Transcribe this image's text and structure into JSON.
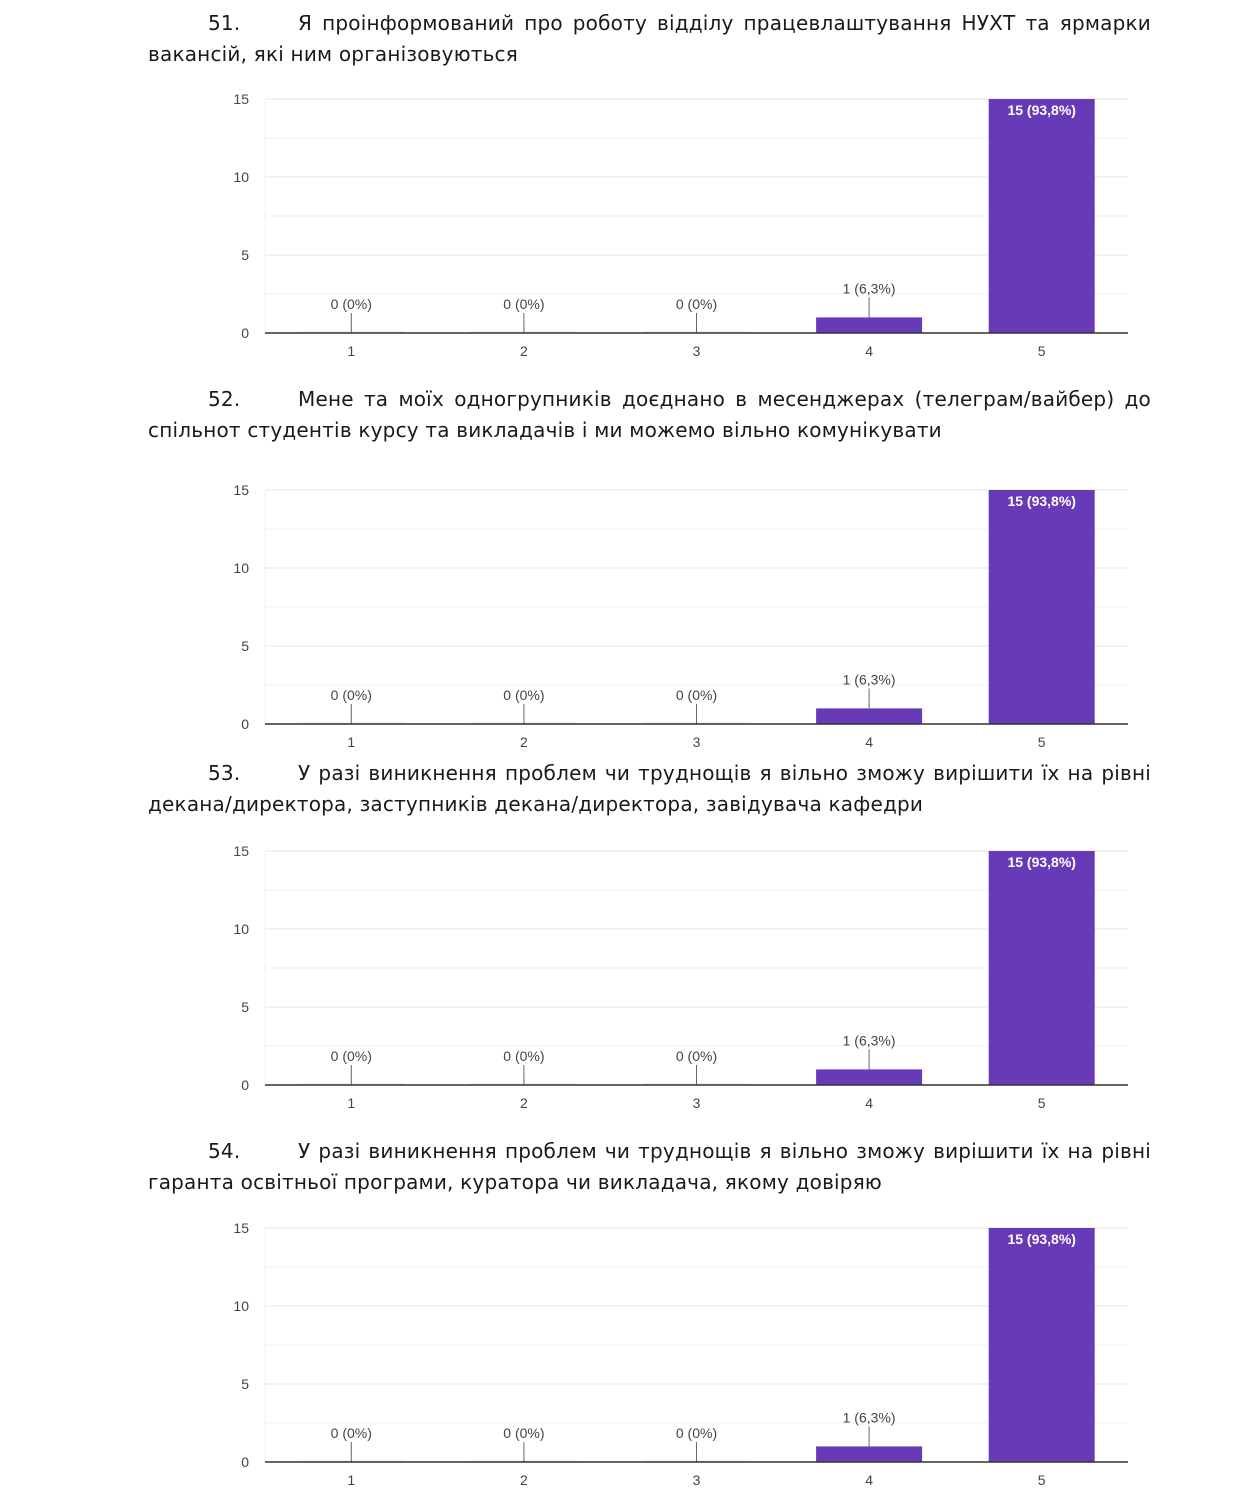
{
  "questions": [
    {
      "number": "51.",
      "text": "Я проінформований про роботу відділу працевлаштування НУХТ та ярмарки вакансій, які ним організовуються"
    },
    {
      "number": "52.",
      "text": "Мене та моїх одногрупників доєднано в месенджерах (телеграм/вайбер) до спільнот студентів курсу та викладачів і ми можемо вільно комунікувати"
    },
    {
      "number": "53.",
      "text": "У разі виникнення проблем чи труднощів я вільно зможу вирішити їх на рівні декана/директора, заступників декана/директора, завідувача кафедри"
    },
    {
      "number": "54.",
      "text": "У разі виникнення проблем чи труднощів я вільно зможу вирішити їх на рівні гаранта освітньої програми, куратора чи викладача, якому довіряю"
    }
  ],
  "colors": {
    "bar": "#673ab7",
    "axis": "#333333",
    "grid": "#eeeeee",
    "text": "#444444"
  },
  "chart_data": [
    {
      "type": "bar",
      "title": "51.",
      "categories": [
        "1",
        "2",
        "3",
        "4",
        "5"
      ],
      "values": [
        0,
        0,
        0,
        1,
        15
      ],
      "labels": [
        "0 (0%)",
        "0 (0%)",
        "0 (0%)",
        "1 (6,3%)",
        "15 (93,8%)"
      ],
      "yticks": [
        "0",
        "5",
        "10",
        "15"
      ],
      "ylim": [
        0,
        15
      ],
      "grid": true,
      "xlabel": "",
      "ylabel": ""
    },
    {
      "type": "bar",
      "title": "52.",
      "categories": [
        "1",
        "2",
        "3",
        "4",
        "5"
      ],
      "values": [
        0,
        0,
        0,
        1,
        15
      ],
      "labels": [
        "0 (0%)",
        "0 (0%)",
        "0 (0%)",
        "1 (6,3%)",
        "15 (93,8%)"
      ],
      "yticks": [
        "0",
        "5",
        "10",
        "15"
      ],
      "ylim": [
        0,
        15
      ],
      "grid": true,
      "xlabel": "",
      "ylabel": ""
    },
    {
      "type": "bar",
      "title": "53.",
      "categories": [
        "1",
        "2",
        "3",
        "4",
        "5"
      ],
      "values": [
        0,
        0,
        0,
        1,
        15
      ],
      "labels": [
        "0 (0%)",
        "0 (0%)",
        "0 (0%)",
        "1 (6,3%)",
        "15 (93,8%)"
      ],
      "yticks": [
        "0",
        "5",
        "10",
        "15"
      ],
      "ylim": [
        0,
        15
      ],
      "grid": true,
      "xlabel": "",
      "ylabel": ""
    },
    {
      "type": "bar",
      "title": "54.",
      "categories": [
        "1",
        "2",
        "3",
        "4",
        "5"
      ],
      "values": [
        0,
        0,
        0,
        1,
        15
      ],
      "labels": [
        "0 (0%)",
        "0 (0%)",
        "0 (0%)",
        "1 (6,3%)",
        "15 (93,8%)"
      ],
      "yticks": [
        "0",
        "5",
        "10",
        "15"
      ],
      "ylim": [
        0,
        15
      ],
      "grid": true,
      "xlabel": "",
      "ylabel": ""
    }
  ]
}
